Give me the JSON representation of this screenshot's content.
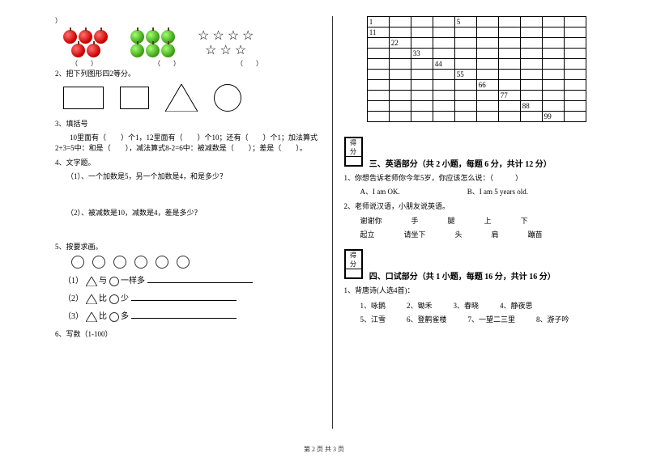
{
  "left": {
    "top_paren": "）",
    "caption_blank": "（　　）",
    "q2": "2、把下列图形四2等分。",
    "q3": "3、填括号",
    "q3_body": "　　10里面有（　　）个1，12里面有（　　）个10；还有（　　）个1；加法算式2+3=5中：和是（　　），减法算式8-2=6中：被减数是（　　）；差是（　　）。",
    "q4": "4、文字题。",
    "q4_1": "（1）、一个加数是5，另一个加数是4，和是多少？",
    "q4_2": "（2）、被减数是10，减数是4，差是多少？",
    "q5": "5、按要求画。",
    "q5_1a": "（1）",
    "q5_1b": "与",
    "q5_1c": "一样多",
    "q5_2a": "（2）",
    "q5_2b": "比",
    "q5_2c": "少",
    "q5_3a": "（3）",
    "q5_3b": "比",
    "q5_3c": "多",
    "q6": "6、写数（1-100）"
  },
  "right": {
    "grid": [
      [
        "1",
        "",
        "",
        "",
        "5",
        "",
        "",
        "",
        "",
        ""
      ],
      [
        "11",
        "",
        "",
        "",
        "",
        "",
        "",
        "",
        "",
        ""
      ],
      [
        "",
        "22",
        "",
        "",
        "",
        "",
        "",
        "",
        "",
        ""
      ],
      [
        "",
        "",
        "33",
        "",
        "",
        "",
        "",
        "",
        "",
        ""
      ],
      [
        "",
        "",
        "",
        "44",
        "",
        "",
        "",
        "",
        "",
        ""
      ],
      [
        "",
        "",
        "",
        "",
        "55",
        "",
        "",
        "",
        "",
        ""
      ],
      [
        "",
        "",
        "",
        "",
        "",
        "66",
        "",
        "",
        "",
        ""
      ],
      [
        "",
        "",
        "",
        "",
        "",
        "",
        "77",
        "",
        "",
        ""
      ],
      [
        "",
        "",
        "",
        "",
        "",
        "",
        "",
        "88",
        "",
        ""
      ],
      [
        "",
        "",
        "",
        "",
        "",
        "",
        "",
        "",
        "99",
        ""
      ]
    ],
    "score_label": "得分",
    "sec3_title": "三、英语部分（共 2 小题，每题 6 分，共计 12 分）",
    "sec3_q1": "1、你想告诉老师你今年5岁，你应该怎么说：（　　　）",
    "sec3_q1_a": "A、I am OK.",
    "sec3_q1_b": "B、I am 5 years old.",
    "sec3_q2": "2、老师说汉语，小朋友说英语。",
    "words_row1": [
      "谢谢你",
      "手",
      "腿",
      "上",
      "下"
    ],
    "words_row2": [
      "起立",
      "请坐下",
      "头",
      "肩",
      "蹦苗"
    ],
    "sec4_title": "四、口试部分（共 1 小题，每题 16 分，共计 16 分）",
    "sec4_q1": "1、背唐诗(人选4首)：",
    "poems1": [
      "1、咏鹅",
      "2、锄禾",
      "3、春晓",
      "4、静夜思"
    ],
    "poems2": [
      "5、江雪",
      "6、登鹳雀楼",
      "7、一望二三里",
      "8、游子吟"
    ]
  },
  "footer": "第 2 页 共 3 页",
  "colors": {
    "text": "#000000",
    "bg": "#ffffff",
    "apple_red": "#cc0000",
    "apple_green": "#3fa018"
  }
}
